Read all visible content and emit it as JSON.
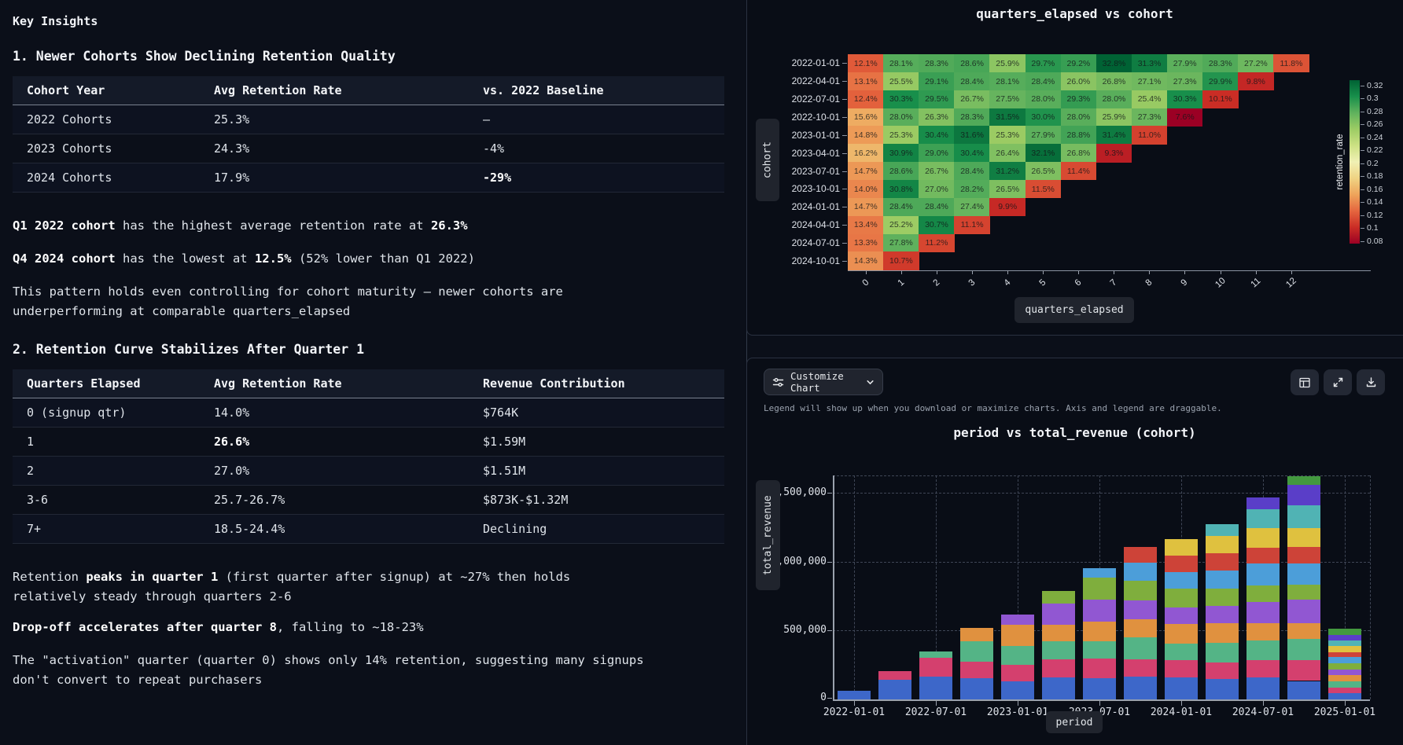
{
  "insights": {
    "title": "Key Insights",
    "section1": {
      "heading": "1. Newer Cohorts Show Declining Retention Quality",
      "table": {
        "headers": [
          "Cohort Year",
          "Avg Retention Rate",
          "vs. 2022 Baseline"
        ],
        "rows": [
          {
            "cells": [
              "2022 Cohorts",
              "25.3%",
              "—"
            ],
            "bold": [
              false,
              false,
              false
            ]
          },
          {
            "cells": [
              "2023 Cohorts",
              "24.3%",
              "-4%"
            ],
            "bold": [
              false,
              false,
              false
            ]
          },
          {
            "cells": [
              "2024 Cohorts",
              "17.9%",
              "-29%"
            ],
            "bold": [
              false,
              false,
              true
            ]
          }
        ]
      },
      "paragraphs": [
        [
          {
            "t": "Q1 2022 cohort",
            "b": true
          },
          {
            "t": " has the highest average retention rate at "
          },
          {
            "t": "26.3%",
            "b": true
          }
        ],
        [
          {
            "t": "Q4 2024 cohort",
            "b": true
          },
          {
            "t": " has the lowest at "
          },
          {
            "t": "12.5%",
            "b": true
          },
          {
            "t": " (52% lower than Q1 2022)"
          }
        ],
        [
          {
            "t": "This pattern holds even controlling for cohort maturity — newer cohorts are underperforming at comparable quarters_elapsed"
          }
        ]
      ]
    },
    "section2": {
      "heading": "2. Retention Curve Stabilizes After Quarter 1",
      "table": {
        "headers": [
          "Quarters Elapsed",
          "Avg Retention Rate",
          "Revenue Contribution"
        ],
        "rows": [
          {
            "cells": [
              "0 (signup qtr)",
              "14.0%",
              "$764K"
            ],
            "bold": [
              false,
              false,
              false
            ]
          },
          {
            "cells": [
              "1",
              "26.6%",
              "$1.59M"
            ],
            "bold": [
              false,
              true,
              false
            ]
          },
          {
            "cells": [
              "2",
              "27.0%",
              "$1.51M"
            ],
            "bold": [
              false,
              false,
              false
            ]
          },
          {
            "cells": [
              "3-6",
              "25.7-26.7%",
              "$873K-$1.32M"
            ],
            "bold": [
              false,
              false,
              false
            ]
          },
          {
            "cells": [
              "7+",
              "18.5-24.4%",
              "Declining"
            ],
            "bold": [
              false,
              false,
              false
            ]
          }
        ]
      },
      "paragraphs": [
        [
          {
            "t": "Retention "
          },
          {
            "t": "peaks in quarter 1",
            "b": true
          },
          {
            "t": " (first quarter after signup) at ~27% then holds relatively steady through quarters 2-6"
          }
        ],
        [
          {
            "t": "Drop-off accelerates after quarter 8",
            "b": true
          },
          {
            "t": ", falling to ~18-23%"
          }
        ],
        [
          {
            "t": "The \"activation\" quarter (quarter 0) shows only 14% retention, suggesting many signups don't convert to repeat purchasers"
          }
        ]
      ]
    }
  },
  "bar_panel": {
    "customize_button": "Customize Chart",
    "helper_text": "Legend will show up when you download or maximize charts. Axis and legend are draggable.",
    "toolbar_icons": [
      "table-icon",
      "maximize-icon",
      "download-icon"
    ]
  },
  "chart_data": [
    {
      "type": "heatmap",
      "title": "quarters_elapsed vs cohort",
      "xlabel": "quarters_elapsed",
      "ylabel": "cohort",
      "x": [
        0,
        1,
        2,
        3,
        4,
        5,
        6,
        7,
        8,
        9,
        10,
        11,
        12
      ],
      "y": [
        "2022-01-01",
        "2022-04-01",
        "2022-07-01",
        "2022-10-01",
        "2023-01-01",
        "2023-04-01",
        "2023-07-01",
        "2023-10-01",
        "2024-01-01",
        "2024-04-01",
        "2024-07-01",
        "2024-10-01"
      ],
      "values_pct": [
        [
          12.1,
          28.1,
          28.3,
          28.6,
          25.9,
          29.7,
          29.2,
          32.8,
          31.3,
          27.9,
          28.3,
          27.2,
          11.8
        ],
        [
          13.1,
          25.5,
          29.1,
          28.4,
          28.1,
          28.4,
          26.0,
          26.8,
          27.1,
          27.3,
          29.9,
          9.8
        ],
        [
          12.4,
          30.3,
          29.5,
          26.7,
          27.5,
          28.0,
          29.3,
          28.0,
          25.4,
          30.3,
          10.1
        ],
        [
          15.6,
          28.0,
          26.3,
          28.3,
          31.5,
          30.0,
          28.0,
          25.9,
          27.3,
          7.6
        ],
        [
          14.8,
          25.3,
          30.4,
          31.6,
          25.3,
          27.9,
          28.8,
          31.4,
          11.0
        ],
        [
          16.2,
          30.9,
          29.0,
          30.4,
          26.4,
          32.1,
          26.8,
          9.3
        ],
        [
          14.7,
          28.6,
          26.7,
          28.4,
          31.2,
          26.5,
          11.4
        ],
        [
          14.0,
          30.8,
          27.0,
          28.2,
          26.5,
          11.5
        ],
        [
          14.7,
          28.4,
          28.4,
          27.4,
          9.9
        ],
        [
          13.4,
          25.2,
          30.7,
          11.1
        ],
        [
          13.3,
          27.8,
          11.2
        ],
        [
          14.3,
          10.7
        ]
      ],
      "colorbar": {
        "label": "retention_rate",
        "ticks": [
          0.32,
          0.3,
          0.28,
          0.26,
          0.24,
          0.22,
          0.2,
          0.18,
          0.16,
          0.14,
          0.12,
          0.1,
          0.08
        ],
        "min": 0.076,
        "max": 0.328
      }
    },
    {
      "type": "stacked_bar",
      "title": "period vs total_revenue (cohort)",
      "xlabel": "period",
      "ylabel": "total_revenue",
      "x": [
        "2022-01-01",
        "2022-04-01",
        "2022-07-01",
        "2022-10-01",
        "2023-01-01",
        "2023-04-01",
        "2023-07-01",
        "2023-10-01",
        "2024-01-01",
        "2024-04-01",
        "2024-07-01",
        "2024-10-01",
        "2025-01-01"
      ],
      "x_tick_labels": [
        "2022-01-01",
        "2022-07-01",
        "2023-01-01",
        "2023-07-01",
        "2024-01-01",
        "2024-07-01",
        "2025-01-01"
      ],
      "y_ticks": [
        {
          "label": ",500,000",
          "value": 1500000
        },
        {
          "label": ",000,000",
          "value": 1000000
        },
        {
          "label": "500,000",
          "value": 500000
        },
        {
          "label": "0",
          "value": 0
        }
      ],
      "ylim": [
        0,
        1650000
      ],
      "series": [
        {
          "name": "2022-01-01",
          "color": "#3d67c9",
          "values": [
            65000,
            145000,
            165000,
            152000,
            130000,
            160000,
            152000,
            165000,
            158000,
            150000,
            158000,
            134000,
            45000
          ]
        },
        {
          "name": "2022-04-01",
          "color": "#d4406e",
          "values": [
            0,
            60000,
            135000,
            120000,
            122000,
            130000,
            145000,
            125000,
            128000,
            118000,
            128000,
            153000,
            42000
          ]
        },
        {
          "name": "2022-07-01",
          "color": "#54b486",
          "values": [
            0,
            0,
            50000,
            148000,
            138000,
            130000,
            124000,
            158000,
            118000,
            140000,
            140000,
            153000,
            42000
          ]
        },
        {
          "name": "2022-10-01",
          "color": "#e0913f",
          "values": [
            0,
            0,
            0,
            100000,
            150000,
            120000,
            142000,
            132000,
            142000,
            145000,
            128000,
            115000,
            45000
          ]
        },
        {
          "name": "2023-01-01",
          "color": "#9157d2",
          "values": [
            0,
            0,
            0,
            0,
            75000,
            155000,
            160000,
            140000,
            120000,
            125000,
            155000,
            172000,
            45000
          ]
        },
        {
          "name": "2023-04-01",
          "color": "#7fae3d",
          "values": [
            0,
            0,
            0,
            0,
            0,
            90000,
            160000,
            140000,
            138000,
            128000,
            118000,
            105000,
            42000
          ]
        },
        {
          "name": "2023-07-01",
          "color": "#4c9ed9",
          "values": [
            0,
            0,
            0,
            0,
            0,
            0,
            72000,
            130000,
            118000,
            128000,
            158000,
            153000,
            45000
          ]
        },
        {
          "name": "2023-10-01",
          "color": "#cd4338",
          "values": [
            0,
            0,
            0,
            0,
            0,
            0,
            0,
            115000,
            122000,
            125000,
            118000,
            119000,
            38000
          ]
        },
        {
          "name": "2024-01-01",
          "color": "#dfc13f",
          "values": [
            0,
            0,
            0,
            0,
            0,
            0,
            0,
            0,
            118000,
            125000,
            140000,
            140000,
            42000
          ]
        },
        {
          "name": "2024-04-01",
          "color": "#50b3b4",
          "values": [
            0,
            0,
            0,
            0,
            0,
            0,
            0,
            0,
            0,
            90000,
            140000,
            167000,
            42000
          ]
        },
        {
          "name": "2024-07-01",
          "color": "#5a3ec8",
          "values": [
            0,
            0,
            0,
            0,
            0,
            0,
            0,
            0,
            0,
            0,
            80000,
            144000,
            42000
          ]
        },
        {
          "name": "2024-10-01",
          "color": "#43993f",
          "values": [
            0,
            0,
            0,
            0,
            0,
            0,
            0,
            0,
            0,
            0,
            0,
            67000,
            42000
          ]
        }
      ]
    }
  ]
}
